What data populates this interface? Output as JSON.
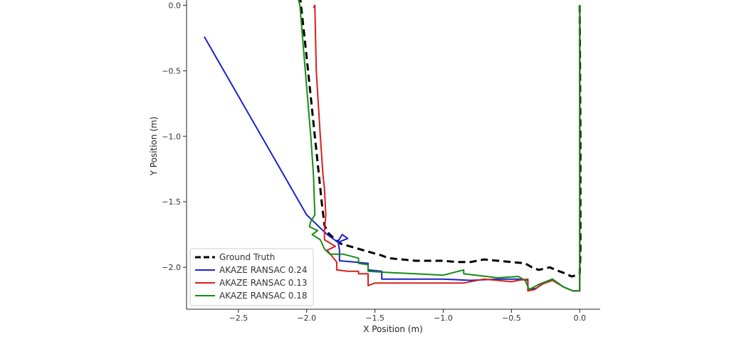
{
  "chart_data": {
    "type": "line",
    "title": "",
    "xlabel": "X Position (m)",
    "ylabel": "Y Position (m)",
    "xlim": [
      -2.88,
      0.15
    ],
    "ylim": [
      -2.32,
      0.04
    ],
    "xticks": [
      -2.5,
      -2.0,
      -1.5,
      -1.0,
      -0.5,
      0.0
    ],
    "xtick_labels": [
      "−2.5",
      "−2.0",
      "−1.5",
      "−1.0",
      "−0.5",
      "0.0"
    ],
    "yticks": [
      0.0,
      -0.5,
      -1.0,
      -1.5,
      -2.0
    ],
    "ytick_labels": [
      "0.0",
      "−0.5",
      "−1.0",
      "−1.5",
      "−2.0"
    ],
    "grid": false,
    "legend_position": "lower-left",
    "series": [
      {
        "name": "Ground Truth",
        "color": "#000000",
        "style": "dashed",
        "points": [
          [
            0.0,
            0.0
          ],
          [
            0.005,
            -1.0
          ],
          [
            0.005,
            -1.9
          ],
          [
            0.0,
            -2.05
          ],
          [
            -0.02,
            -2.06
          ],
          [
            -0.06,
            -2.07
          ],
          [
            -0.1,
            -2.05
          ],
          [
            -0.15,
            -2.03
          ],
          [
            -0.22,
            -2.0
          ],
          [
            -0.3,
            -2.02
          ],
          [
            -0.35,
            -2.0
          ],
          [
            -0.4,
            -1.97
          ],
          [
            -0.5,
            -1.96
          ],
          [
            -0.6,
            -1.95
          ],
          [
            -0.7,
            -1.94
          ],
          [
            -0.8,
            -1.96
          ],
          [
            -0.9,
            -1.96
          ],
          [
            -1.0,
            -1.95
          ],
          [
            -1.2,
            -1.95
          ],
          [
            -1.4,
            -1.93
          ],
          [
            -1.45,
            -1.91
          ],
          [
            -1.55,
            -1.88
          ],
          [
            -1.65,
            -1.85
          ],
          [
            -1.75,
            -1.82
          ],
          [
            -1.8,
            -1.78
          ],
          [
            -1.84,
            -1.74
          ],
          [
            -1.87,
            -1.68
          ],
          [
            -1.89,
            -1.5
          ],
          [
            -1.91,
            -1.3
          ],
          [
            -1.94,
            -1.0
          ],
          [
            -1.97,
            -0.7
          ],
          [
            -2.01,
            -0.3
          ],
          [
            -2.05,
            0.08
          ]
        ]
      },
      {
        "name": "AKAZE RANSAC 0.24",
        "color": "#1a22cc",
        "style": "solid",
        "points": [
          [
            0.0,
            0.0
          ],
          [
            0.0,
            -2.18
          ],
          [
            -0.05,
            -2.18
          ],
          [
            -0.12,
            -2.15
          ],
          [
            -0.2,
            -2.09
          ],
          [
            -0.26,
            -2.12
          ],
          [
            -0.32,
            -2.16
          ],
          [
            -0.38,
            -2.17
          ],
          [
            -0.38,
            -2.1
          ],
          [
            -0.45,
            -2.09
          ],
          [
            -0.6,
            -2.09
          ],
          [
            -0.8,
            -2.1
          ],
          [
            -1.0,
            -2.09
          ],
          [
            -1.2,
            -2.09
          ],
          [
            -1.45,
            -2.09
          ],
          [
            -1.45,
            -2.03
          ],
          [
            -1.55,
            -2.02
          ],
          [
            -1.55,
            -1.97
          ],
          [
            -1.65,
            -1.96
          ],
          [
            -1.76,
            -1.95
          ],
          [
            -1.76,
            -1.87
          ],
          [
            -1.77,
            -1.8
          ],
          [
            -1.74,
            -1.75
          ],
          [
            -1.7,
            -1.78
          ],
          [
            -1.77,
            -1.81
          ],
          [
            -1.85,
            -1.75
          ],
          [
            -2.0,
            -1.6
          ],
          [
            -2.75,
            -0.24
          ]
        ]
      },
      {
        "name": "AKAZE RANSAC 0.13",
        "color": "#d62020",
        "style": "solid",
        "points": [
          [
            0.0,
            0.0
          ],
          [
            0.0,
            -2.18
          ],
          [
            -0.05,
            -2.18
          ],
          [
            -0.12,
            -2.15
          ],
          [
            -0.2,
            -2.1
          ],
          [
            -0.28,
            -2.13
          ],
          [
            -0.33,
            -2.17
          ],
          [
            -0.38,
            -2.18
          ],
          [
            -0.38,
            -2.09
          ],
          [
            -0.45,
            -2.1
          ],
          [
            -0.5,
            -2.11
          ],
          [
            -0.7,
            -2.09
          ],
          [
            -0.85,
            -2.12
          ],
          [
            -1.0,
            -2.12
          ],
          [
            -1.2,
            -2.12
          ],
          [
            -1.5,
            -2.12
          ],
          [
            -1.55,
            -2.14
          ],
          [
            -1.55,
            -2.05
          ],
          [
            -1.62,
            -2.05
          ],
          [
            -1.62,
            -2.03
          ],
          [
            -1.7,
            -2.03
          ],
          [
            -1.78,
            -2.02
          ],
          [
            -1.78,
            -1.96
          ],
          [
            -1.85,
            -1.87
          ],
          [
            -1.79,
            -1.84
          ],
          [
            -1.87,
            -1.79
          ],
          [
            -1.87,
            -1.72
          ],
          [
            -1.86,
            -1.6
          ],
          [
            -1.87,
            -1.4
          ],
          [
            -1.88,
            -1.3
          ],
          [
            -1.9,
            -1.0
          ],
          [
            -1.93,
            -0.5
          ],
          [
            -1.94,
            0.0
          ],
          [
            -1.95,
            -0.02
          ]
        ]
      },
      {
        "name": "AKAZE RANSAC 0.18",
        "color": "#168c16",
        "style": "solid",
        "points": [
          [
            0.0,
            0.0
          ],
          [
            0.0,
            -2.18
          ],
          [
            -0.05,
            -2.18
          ],
          [
            -0.12,
            -2.15
          ],
          [
            -0.2,
            -2.09
          ],
          [
            -0.3,
            -2.13
          ],
          [
            -0.37,
            -2.17
          ],
          [
            -0.4,
            -2.1
          ],
          [
            -0.45,
            -2.07
          ],
          [
            -0.6,
            -2.08
          ],
          [
            -0.85,
            -2.05
          ],
          [
            -0.85,
            -2.02
          ],
          [
            -1.0,
            -2.06
          ],
          [
            -1.2,
            -2.05
          ],
          [
            -1.4,
            -2.04
          ],
          [
            -1.55,
            -2.03
          ],
          [
            -1.55,
            -1.98
          ],
          [
            -1.62,
            -1.97
          ],
          [
            -1.62,
            -1.93
          ],
          [
            -1.73,
            -1.9
          ],
          [
            -1.83,
            -1.9
          ],
          [
            -1.87,
            -1.86
          ],
          [
            -1.9,
            -1.79
          ],
          [
            -1.96,
            -1.75
          ],
          [
            -1.92,
            -1.72
          ],
          [
            -1.98,
            -1.69
          ],
          [
            -1.97,
            -1.65
          ],
          [
            -1.94,
            -1.6
          ],
          [
            -1.95,
            -1.3
          ],
          [
            -1.97,
            -1.0
          ],
          [
            -2.01,
            -0.5
          ],
          [
            -2.05,
            0.0
          ],
          [
            -2.07,
            0.08
          ]
        ]
      }
    ]
  }
}
